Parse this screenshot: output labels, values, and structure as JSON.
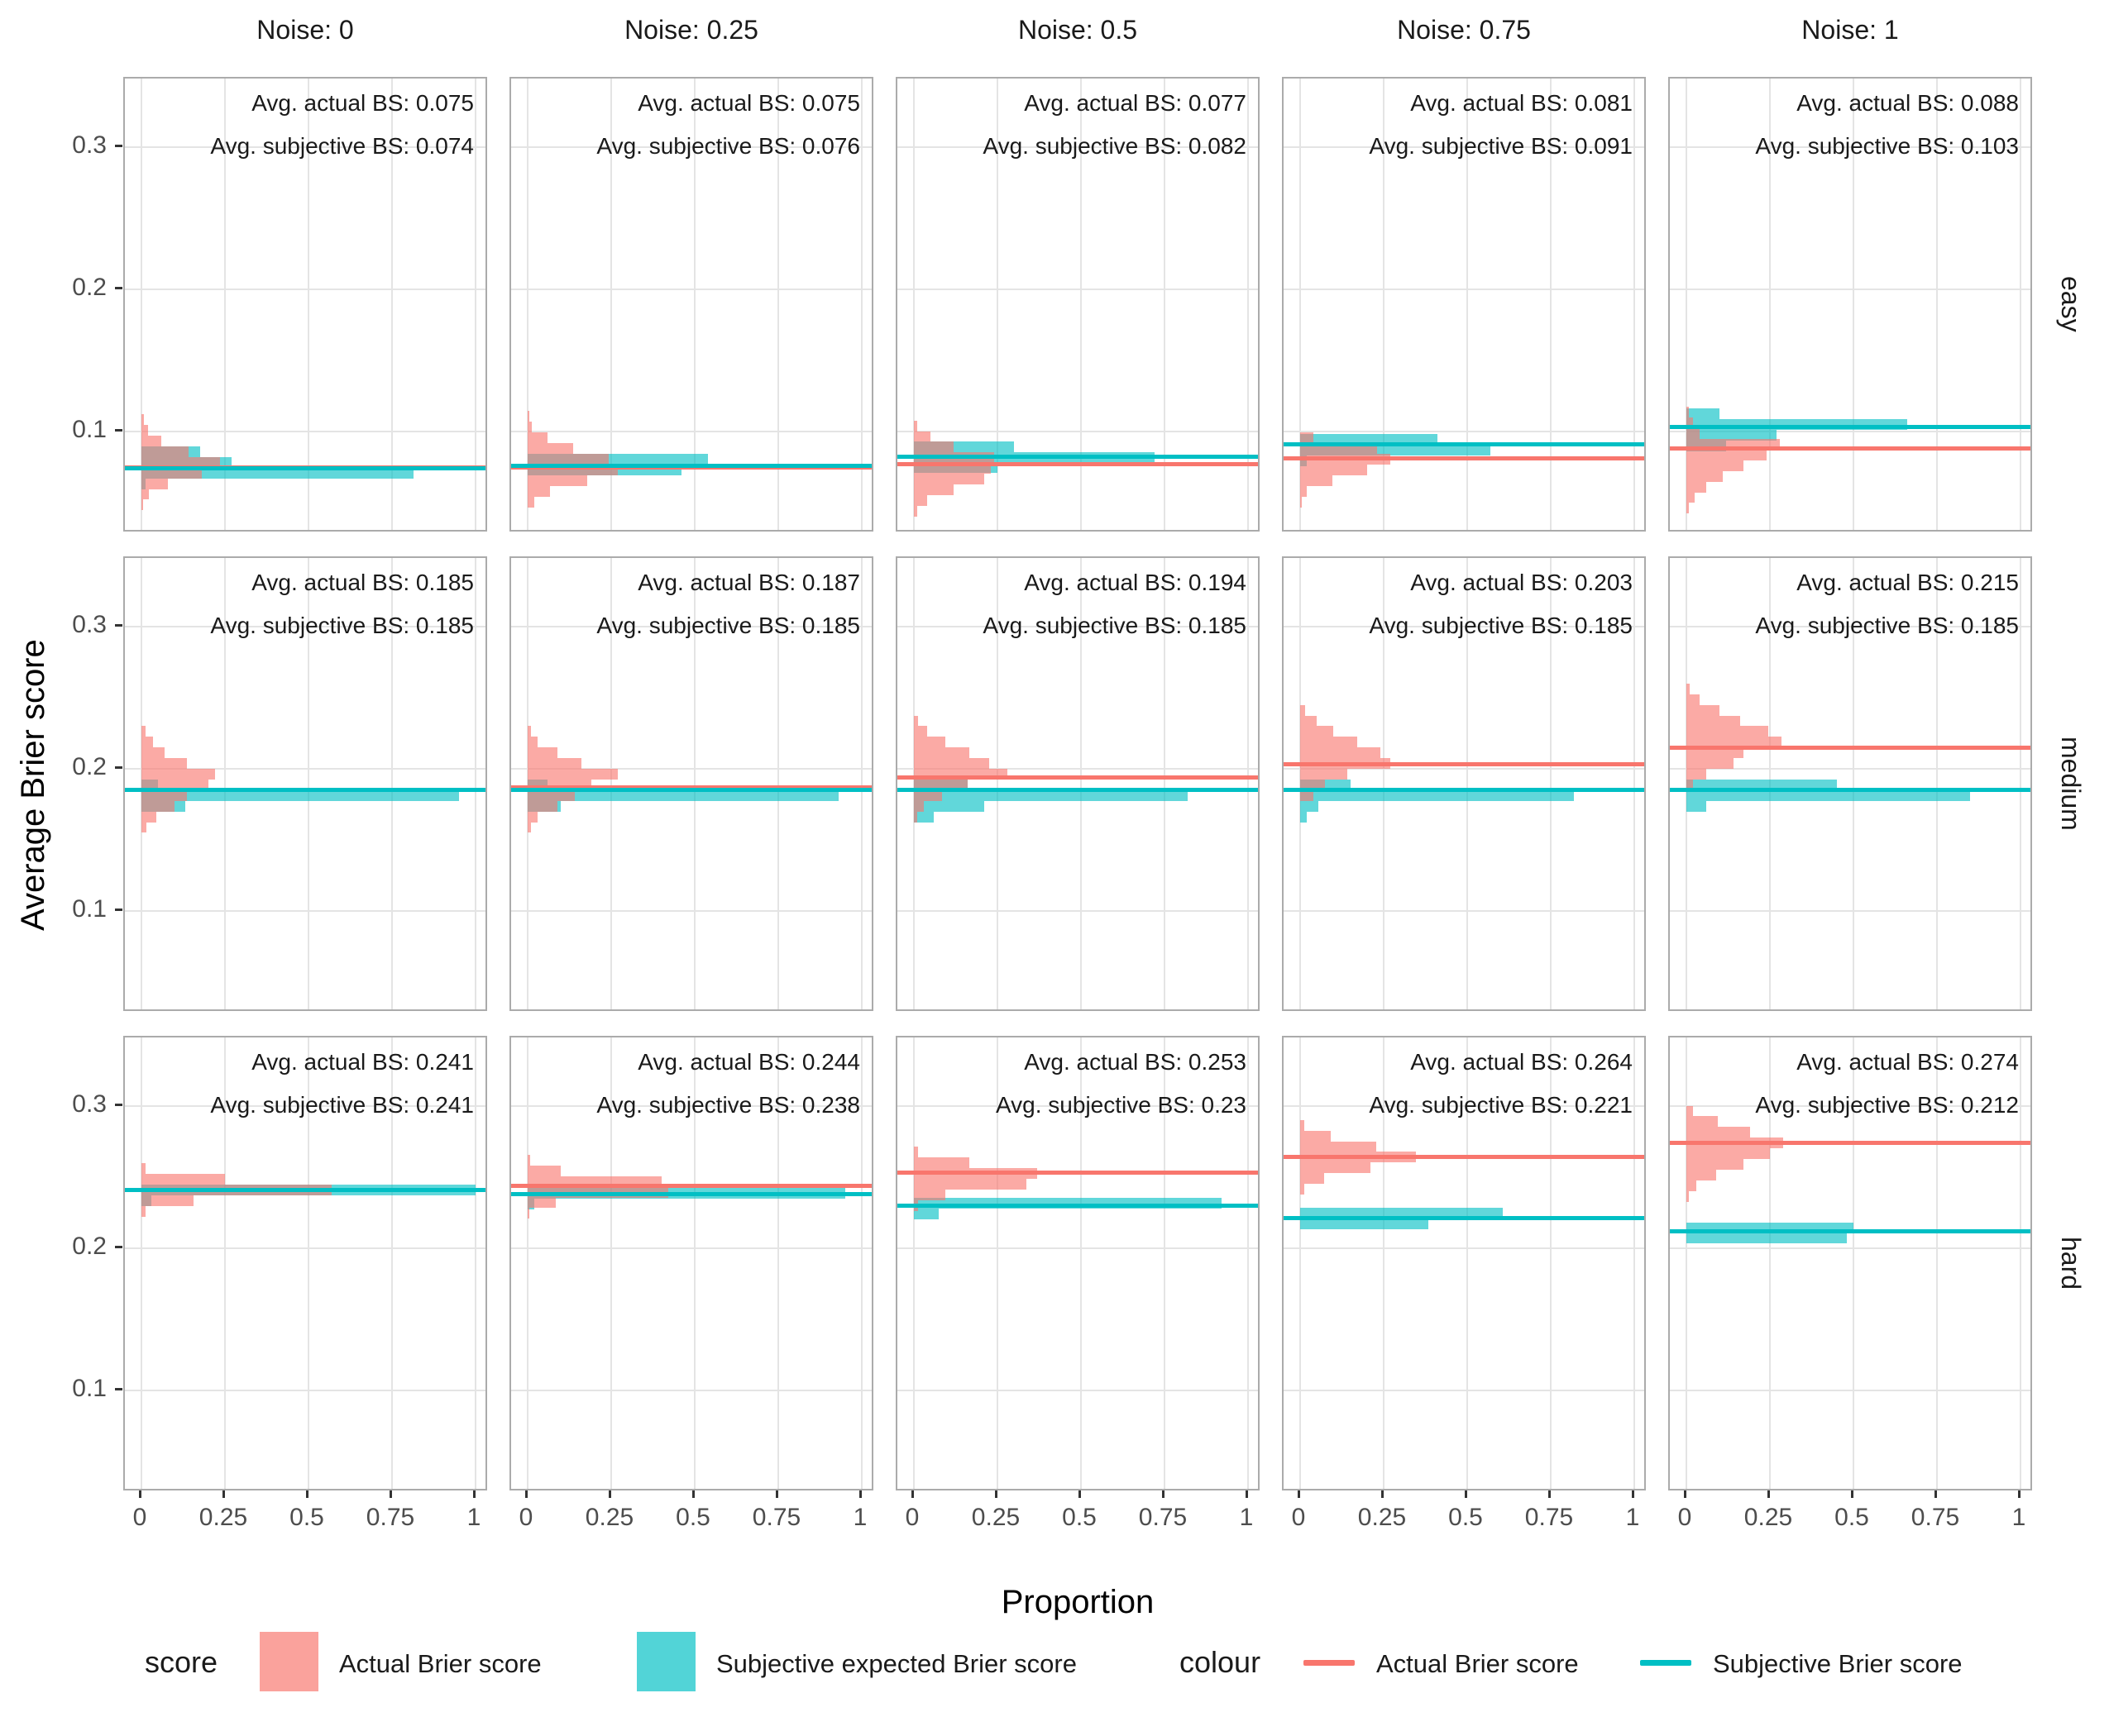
{
  "chart_data": {
    "type": "histogram-faceted",
    "title": "",
    "xlabel": "Proportion",
    "ylabel": "Average Brier score",
    "facet_cols": [
      "Noise: 0",
      "Noise: 0.25",
      "Noise: 0.5",
      "Noise: 0.75",
      "Noise: 1"
    ],
    "facet_rows": [
      "easy",
      "medium",
      "hard"
    ],
    "x_tick_labels": [
      "0",
      "0.25",
      "0.5",
      "0.75",
      "1"
    ],
    "x_tick_values": [
      0,
      0.25,
      0.5,
      0.75,
      1
    ],
    "y_tick_labels": [
      "0.3",
      "0.2",
      "0.1"
    ],
    "y_tick_values": [
      0.3,
      0.2,
      0.1
    ],
    "xlim": [
      -0.05,
      1.05
    ],
    "ylim": [
      0.028,
      0.348
    ],
    "bin_width": 0.0075,
    "grid": "major-only",
    "colors": {
      "actual_fill": "rgba(248,118,109,0.62)",
      "subjective_fill": "rgba(0,191,196,0.62)",
      "actual_line": "#F8766D",
      "subjective_line": "#00BFC4",
      "gridline": "#E4E4E4",
      "panel_border": "#ABABAB",
      "tick_label": "#4D4D4D"
    },
    "panels": [
      {
        "row": "easy",
        "col": "Noise: 0",
        "avg_actual": 0.075,
        "avg_subjective": 0.074,
        "label_actual": "Avg. actual BS: 0.075",
        "label_subjective": "Avg. subjective BS: 0.074",
        "actual": [
          [
            0.1083,
            0.008
          ],
          [
            0.1008,
            0.02
          ],
          [
            0.0933,
            0.06
          ],
          [
            0.0858,
            0.14
          ],
          [
            0.0782,
            0.235
          ],
          [
            0.0708,
            0.18
          ],
          [
            0.0633,
            0.078
          ],
          [
            0.0558,
            0.022
          ],
          [
            0.0483,
            0.006
          ]
        ],
        "subjective": [
          [
            0.0858,
            0.175
          ],
          [
            0.0782,
            0.27
          ],
          [
            0.0708,
            0.815
          ],
          [
            0.0633,
            0.012
          ]
        ]
      },
      {
        "row": "easy",
        "col": "Noise: 0.25",
        "avg_actual": 0.075,
        "avg_subjective": 0.076,
        "label_actual": "Avg. actual BS: 0.075",
        "label_subjective": "Avg. subjective BS: 0.076",
        "actual": [
          [
            0.103,
            0.012
          ],
          [
            0.0955,
            0.06
          ],
          [
            0.088,
            0.136
          ],
          [
            0.0805,
            0.243
          ],
          [
            0.073,
            0.27
          ],
          [
            0.0655,
            0.178
          ],
          [
            0.058,
            0.067
          ],
          [
            0.0505,
            0.02
          ],
          [
            0.1105,
            0.004
          ]
        ],
        "subjective": [
          [
            0.0805,
            0.54
          ],
          [
            0.073,
            0.46
          ]
        ]
      },
      {
        "row": "easy",
        "col": "Noise: 0.5",
        "avg_actual": 0.077,
        "avg_subjective": 0.082,
        "label_actual": "Avg. actual BS: 0.077",
        "label_subjective": "Avg. subjective BS: 0.082",
        "actual": [
          [
            0.104,
            0.01
          ],
          [
            0.0965,
            0.05
          ],
          [
            0.089,
            0.12
          ],
          [
            0.0815,
            0.24
          ],
          [
            0.074,
            0.23
          ],
          [
            0.0665,
            0.21
          ],
          [
            0.059,
            0.12
          ],
          [
            0.0515,
            0.04
          ],
          [
            0.044,
            0.01
          ]
        ],
        "subjective": [
          [
            0.0895,
            0.3
          ],
          [
            0.082,
            0.72
          ],
          [
            0.0745,
            0.25
          ]
        ]
      },
      {
        "row": "easy",
        "col": "Noise: 0.75",
        "avg_actual": 0.081,
        "avg_subjective": 0.091,
        "label_actual": "Avg. actual BS: 0.081",
        "label_subjective": "Avg. subjective BS: 0.091",
        "actual": [
          [
            0.0955,
            0.04
          ],
          [
            0.088,
            0.23
          ],
          [
            0.0805,
            0.27
          ],
          [
            0.073,
            0.2
          ],
          [
            0.0655,
            0.096
          ],
          [
            0.058,
            0.02
          ],
          [
            0.0505,
            0.006
          ]
        ],
        "subjective": [
          [
            0.0945,
            0.41
          ],
          [
            0.087,
            0.57
          ],
          [
            0.0795,
            0.02
          ]
        ]
      },
      {
        "row": "easy",
        "col": "Noise: 1",
        "avg_actual": 0.088,
        "avg_subjective": 0.103,
        "label_actual": "Avg. actual BS: 0.088",
        "label_subjective": "Avg. subjective BS: 0.103",
        "actual": [
          [
            0.1135,
            0.008
          ],
          [
            0.106,
            0.02
          ],
          [
            0.0985,
            0.04
          ],
          [
            0.091,
            0.28
          ],
          [
            0.0835,
            0.24
          ],
          [
            0.076,
            0.17
          ],
          [
            0.0685,
            0.11
          ],
          [
            0.061,
            0.06
          ],
          [
            0.0535,
            0.025
          ],
          [
            0.046,
            0.008
          ]
        ],
        "subjective": [
          [
            0.1125,
            0.1
          ],
          [
            0.105,
            0.66
          ],
          [
            0.0975,
            0.27
          ],
          [
            0.09,
            0.12
          ]
        ]
      },
      {
        "row": "medium",
        "col": "Noise: 0",
        "avg_actual": 0.185,
        "avg_subjective": 0.185,
        "label_actual": "Avg. actual BS: 0.185",
        "label_subjective": "Avg. subjective BS: 0.185",
        "actual": [
          [
            0.2262,
            0.012
          ],
          [
            0.2187,
            0.035
          ],
          [
            0.2112,
            0.07
          ],
          [
            0.2037,
            0.135
          ],
          [
            0.1962,
            0.22
          ],
          [
            0.1887,
            0.2
          ],
          [
            0.1812,
            0.135
          ],
          [
            0.1737,
            0.1
          ],
          [
            0.1662,
            0.045
          ],
          [
            0.1587,
            0.015
          ]
        ],
        "subjective": [
          [
            0.1887,
            0.05
          ],
          [
            0.1812,
            0.95
          ],
          [
            0.1737,
            0.13
          ]
        ]
      },
      {
        "row": "medium",
        "col": "Noise: 0.25",
        "avg_actual": 0.187,
        "avg_subjective": 0.185,
        "label_actual": "Avg. actual BS: 0.187",
        "label_subjective": "Avg. subjective BS: 0.185",
        "actual": [
          [
            0.2262,
            0.01
          ],
          [
            0.2187,
            0.03
          ],
          [
            0.2112,
            0.09
          ],
          [
            0.2037,
            0.16
          ],
          [
            0.1962,
            0.27
          ],
          [
            0.1887,
            0.19
          ],
          [
            0.1812,
            0.14
          ],
          [
            0.1737,
            0.09
          ],
          [
            0.1662,
            0.03
          ],
          [
            0.1587,
            0.01
          ]
        ],
        "subjective": [
          [
            0.1887,
            0.06
          ],
          [
            0.1812,
            0.93
          ],
          [
            0.1737,
            0.1
          ]
        ]
      },
      {
        "row": "medium",
        "col": "Noise: 0.5",
        "avg_actual": 0.194,
        "avg_subjective": 0.185,
        "label_actual": "Avg. actual BS: 0.194",
        "label_subjective": "Avg. subjective BS: 0.185",
        "actual": [
          [
            0.2337,
            0.012
          ],
          [
            0.2262,
            0.04
          ],
          [
            0.2187,
            0.095
          ],
          [
            0.2112,
            0.165
          ],
          [
            0.2037,
            0.225
          ],
          [
            0.1962,
            0.28
          ],
          [
            0.1887,
            0.16
          ],
          [
            0.1812,
            0.085
          ],
          [
            0.1737,
            0.03
          ],
          [
            0.1662,
            0.01
          ]
        ],
        "subjective": [
          [
            0.1887,
            0.16
          ],
          [
            0.1812,
            0.82
          ],
          [
            0.1737,
            0.21
          ],
          [
            0.1662,
            0.06
          ]
        ]
      },
      {
        "row": "medium",
        "col": "Noise: 0.75",
        "avg_actual": 0.203,
        "avg_subjective": 0.185,
        "label_actual": "Avg. actual BS: 0.203",
        "label_subjective": "Avg. subjective BS: 0.185",
        "actual": [
          [
            0.2412,
            0.015
          ],
          [
            0.2337,
            0.05
          ],
          [
            0.2262,
            0.1
          ],
          [
            0.2187,
            0.17
          ],
          [
            0.2112,
            0.24
          ],
          [
            0.2037,
            0.27
          ],
          [
            0.1962,
            0.14
          ],
          [
            0.1887,
            0.075
          ],
          [
            0.1812,
            0.04
          ]
        ],
        "subjective": [
          [
            0.1887,
            0.15
          ],
          [
            0.1812,
            0.82
          ],
          [
            0.1737,
            0.055
          ],
          [
            0.1662,
            0.02
          ]
        ]
      },
      {
        "row": "medium",
        "col": "Noise: 1",
        "avg_actual": 0.215,
        "avg_subjective": 0.185,
        "label_actual": "Avg. actual BS: 0.215",
        "label_subjective": "Avg. subjective BS: 0.185",
        "actual": [
          [
            0.2562,
            0.01
          ],
          [
            0.2487,
            0.04
          ],
          [
            0.2412,
            0.1
          ],
          [
            0.2337,
            0.16
          ],
          [
            0.2262,
            0.245
          ],
          [
            0.2187,
            0.285
          ],
          [
            0.2112,
            0.17
          ],
          [
            0.2037,
            0.14
          ],
          [
            0.1962,
            0.06
          ],
          [
            0.1887,
            0.02
          ]
        ],
        "subjective": [
          [
            0.1887,
            0.45
          ],
          [
            0.1812,
            0.85
          ],
          [
            0.1737,
            0.06
          ]
        ]
      },
      {
        "row": "hard",
        "col": "Noise: 0",
        "avg_actual": 0.241,
        "avg_subjective": 0.241,
        "label_actual": "Avg. actual BS: 0.241",
        "label_subjective": "Avg. subjective BS: 0.241",
        "actual": [
          [
            0.256,
            0.012
          ],
          [
            0.2485,
            0.25
          ],
          [
            0.241,
            0.57
          ],
          [
            0.2335,
            0.155
          ],
          [
            0.226,
            0.012
          ]
        ],
        "subjective": [
          [
            0.241,
            1.0
          ],
          [
            0.2335,
            0.03
          ]
        ]
      },
      {
        "row": "hard",
        "col": "Noise: 0.25",
        "avg_actual": 0.244,
        "avg_subjective": 0.238,
        "label_actual": "Avg. actual BS: 0.244",
        "label_subjective": "Avg. subjective BS: 0.238",
        "actual": [
          [
            0.262,
            0.008
          ],
          [
            0.2545,
            0.1
          ],
          [
            0.247,
            0.4
          ],
          [
            0.2395,
            0.42
          ],
          [
            0.232,
            0.085
          ],
          [
            0.2245,
            0.006
          ]
        ],
        "subjective": [
          [
            0.2385,
            0.95
          ],
          [
            0.231,
            0.02
          ]
        ]
      },
      {
        "row": "hard",
        "col": "Noise: 0.5",
        "avg_actual": 0.253,
        "avg_subjective": 0.23,
        "label_actual": "Avg. actual BS: 0.253",
        "label_subjective": "Avg. subjective BS: 0.23",
        "actual": [
          [
            0.2675,
            0.012
          ],
          [
            0.26,
            0.166
          ],
          [
            0.2525,
            0.37
          ],
          [
            0.245,
            0.337
          ],
          [
            0.2375,
            0.094
          ],
          [
            0.23,
            0.012
          ]
        ],
        "subjective": [
          [
            0.2315,
            0.92
          ],
          [
            0.224,
            0.074
          ]
        ]
      },
      {
        "row": "hard",
        "col": "Noise: 0.75",
        "avg_actual": 0.264,
        "avg_subjective": 0.221,
        "label_actual": "Avg. actual BS: 0.264",
        "label_subjective": "Avg. subjective BS: 0.221",
        "actual": [
          [
            0.2865,
            0.012
          ],
          [
            0.279,
            0.092
          ],
          [
            0.2715,
            0.228
          ],
          [
            0.264,
            0.347
          ],
          [
            0.2565,
            0.21
          ],
          [
            0.249,
            0.071
          ],
          [
            0.2415,
            0.012
          ]
        ],
        "subjective": [
          [
            0.2245,
            0.606
          ],
          [
            0.217,
            0.384
          ]
        ]
      },
      {
        "row": "hard",
        "col": "Noise: 1",
        "avg_actual": 0.274,
        "avg_subjective": 0.212,
        "label_actual": "Avg. actual BS: 0.274",
        "label_subjective": "Avg. subjective BS: 0.212",
        "actual": [
          [
            0.2965,
            0.02
          ],
          [
            0.289,
            0.095
          ],
          [
            0.2815,
            0.19
          ],
          [
            0.274,
            0.29
          ],
          [
            0.2665,
            0.25
          ],
          [
            0.259,
            0.17
          ],
          [
            0.2515,
            0.09
          ],
          [
            0.244,
            0.03
          ],
          [
            0.2365,
            0.008
          ]
        ],
        "subjective": [
          [
            0.2145,
            0.5
          ],
          [
            0.207,
            0.48
          ]
        ]
      }
    ]
  },
  "legend": {
    "score": {
      "title": "score",
      "items": [
        {
          "label": "Actual Brier score",
          "color": "rgba(248,118,109,0.68)"
        },
        {
          "label": "Subjective expected Brier score",
          "color": "rgba(0,191,196,0.68)"
        }
      ]
    },
    "colour": {
      "title": "colour",
      "items": [
        {
          "label": "Actual Brier score",
          "color": "#F8766D"
        },
        {
          "label": "Subjective Brier score",
          "color": "#00BFC4"
        }
      ]
    }
  }
}
